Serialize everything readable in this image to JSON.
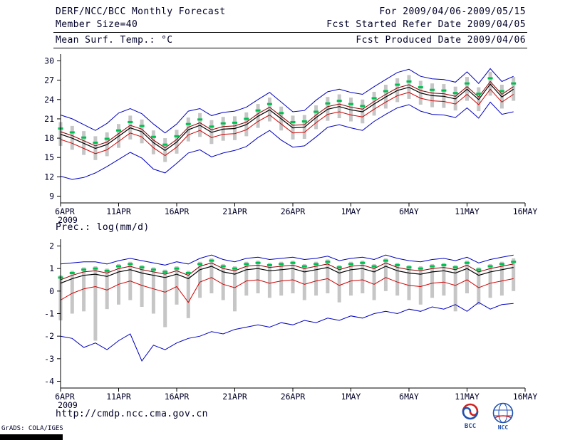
{
  "header": {
    "title": "DERF/NCC/BCC Monthly Forecast",
    "for_range": "For 2009/04/06-2009/05/15",
    "member_size": "Member Size=40",
    "refer_date": "Fcst Started Refer Date 2009/04/05",
    "produced_date": "Fcst Produced Date 2009/04/06"
  },
  "panels": {
    "temp_label": "Mean Surf. Temp.: °C",
    "prec_label": "Prec.: log(mm/d)"
  },
  "footer": {
    "url": "http://cmdp.ncc.cma.gov.cn",
    "grads_credit": "GrADS: COLA/IGES",
    "logos": {
      "bcc": "BCC",
      "ncc": "NCC"
    }
  },
  "colors": {
    "text": "#000028",
    "axis": "#000000",
    "extreme_line": "#0000c0",
    "upper_quartile_line": "#8a0000",
    "mean_line": "#000000",
    "lower_quartile_line": "#d00000",
    "spread_bar": "#c6c6c6",
    "median_marker": "#00c050"
  },
  "chart_data": [
    {
      "type": "line",
      "title": "Mean Surf. Temp.: °C",
      "xlabel": "",
      "ylabel": "°C",
      "ylim": [
        9,
        30
      ],
      "yticks": [
        9,
        12,
        15,
        18,
        21,
        24,
        27,
        30
      ],
      "x_domain": 40,
      "x_tick_positions": [
        0,
        5,
        10,
        15,
        20,
        25,
        30,
        35,
        40
      ],
      "x_tick_labels": [
        "6APR",
        "11APR",
        "16APR",
        "21APR",
        "26APR",
        "1MAY",
        "6MAY",
        "11MAY",
        "16MAY"
      ],
      "x_sub_label": "2009",
      "grid": false,
      "legend": "none",
      "series": [
        {
          "name": "ensemble-max",
          "color": "#0000c0",
          "width": 1,
          "values": [
            21.6,
            21.0,
            20.1,
            19.2,
            20.3,
            21.9,
            22.6,
            21.8,
            20.2,
            18.8,
            20.2,
            22.2,
            22.6,
            21.5,
            22.0,
            22.2,
            22.8,
            24.0,
            25.1,
            23.6,
            22.1,
            22.3,
            23.9,
            25.2,
            25.6,
            25.1,
            24.8,
            26.0,
            27.1,
            28.2,
            28.7,
            27.6,
            27.2,
            27.1,
            26.7,
            28.3,
            26.5,
            28.8,
            26.8,
            27.6
          ]
        },
        {
          "name": "upper-quartile",
          "color": "#8a0000",
          "width": 1,
          "values": [
            19.0,
            18.4,
            17.6,
            16.8,
            17.4,
            18.7,
            20.0,
            19.4,
            17.7,
            16.5,
            17.8,
            19.7,
            20.4,
            19.3,
            19.8,
            19.9,
            20.5,
            21.8,
            22.8,
            21.4,
            20.0,
            20.1,
            21.6,
            22.9,
            23.3,
            22.8,
            22.5,
            23.7,
            24.8,
            25.8,
            26.3,
            25.4,
            25.0,
            24.9,
            24.5,
            26.0,
            24.4,
            26.8,
            24.8,
            26.0
          ]
        },
        {
          "name": "ensemble-mean",
          "color": "#000000",
          "width": 1.2,
          "values": [
            18.6,
            18.0,
            17.2,
            16.4,
            17.0,
            18.3,
            19.6,
            19.0,
            17.3,
            16.1,
            17.4,
            19.3,
            20.0,
            18.9,
            19.4,
            19.5,
            20.1,
            21.4,
            22.4,
            21.0,
            19.6,
            19.7,
            21.2,
            22.5,
            22.9,
            22.4,
            22.1,
            23.3,
            24.4,
            25.4,
            25.9,
            25.0,
            24.6,
            24.5,
            24.1,
            25.6,
            24.0,
            26.4,
            24.4,
            25.6
          ]
        },
        {
          "name": "lower-quartile",
          "color": "#d00000",
          "width": 1,
          "values": [
            17.8,
            17.2,
            16.4,
            15.6,
            16.2,
            17.5,
            18.8,
            18.2,
            16.5,
            15.3,
            16.6,
            18.5,
            19.2,
            18.1,
            18.6,
            18.7,
            19.3,
            20.6,
            21.6,
            20.2,
            18.8,
            18.9,
            20.4,
            21.7,
            22.1,
            21.6,
            21.3,
            22.5,
            23.6,
            24.6,
            25.1,
            24.2,
            23.8,
            23.7,
            23.3,
            24.8,
            23.2,
            25.6,
            23.6,
            24.8
          ]
        },
        {
          "name": "ensemble-min",
          "color": "#0000c0",
          "width": 1,
          "values": [
            12.1,
            11.6,
            11.9,
            12.6,
            13.6,
            14.7,
            15.8,
            14.9,
            13.2,
            12.6,
            14.1,
            15.7,
            16.2,
            15.1,
            15.7,
            16.1,
            16.7,
            18.1,
            19.2,
            17.7,
            16.6,
            16.8,
            18.2,
            19.7,
            20.1,
            19.6,
            19.2,
            20.6,
            21.7,
            22.7,
            23.2,
            22.2,
            21.7,
            21.6,
            21.2,
            22.7,
            21.1,
            23.6,
            21.7,
            22.1
          ]
        }
      ],
      "bars": {
        "name": "ensemble-spread",
        "color": "#c6c6c6",
        "low": [
          16.8,
          16.2,
          15.4,
          14.6,
          15.2,
          16.5,
          17.8,
          17.2,
          15.5,
          14.3,
          15.6,
          17.5,
          18.2,
          17.1,
          17.6,
          17.7,
          18.3,
          19.6,
          20.6,
          19.2,
          17.8,
          17.9,
          19.4,
          20.7,
          21.1,
          20.6,
          20.3,
          21.5,
          22.6,
          23.6,
          24.1,
          23.2,
          22.8,
          22.7,
          22.3,
          23.8,
          22.2,
          24.6,
          22.6,
          23.8
        ],
        "high": [
          20.5,
          19.9,
          19.1,
          18.3,
          18.9,
          20.2,
          21.5,
          20.9,
          19.2,
          18.0,
          19.3,
          21.2,
          21.9,
          20.8,
          21.3,
          21.4,
          22.0,
          23.3,
          24.3,
          22.9,
          21.5,
          21.6,
          23.1,
          24.4,
          24.8,
          24.3,
          24.0,
          25.2,
          26.3,
          27.3,
          27.8,
          26.9,
          26.5,
          26.4,
          26.0,
          27.5,
          25.9,
          28.3,
          26.3,
          27.5
        ]
      },
      "markers": {
        "name": "median-dash",
        "color": "#00c050",
        "values": [
          19.5,
          18.9,
          18.1,
          17.3,
          17.9,
          19.2,
          20.5,
          19.9,
          18.2,
          17.0,
          18.3,
          20.2,
          20.9,
          19.8,
          20.3,
          20.4,
          21.0,
          22.3,
          23.3,
          21.9,
          20.5,
          20.6,
          22.1,
          23.4,
          23.8,
          23.3,
          23.0,
          24.2,
          25.3,
          26.3,
          26.8,
          25.9,
          25.5,
          25.4,
          25.0,
          26.5,
          24.9,
          27.3,
          25.3,
          26.5
        ]
      }
    },
    {
      "type": "line",
      "title": "Prec.: log(mm/d)",
      "xlabel": "",
      "ylabel": "log(mm/d)",
      "ylim": [
        -4,
        2
      ],
      "yticks": [
        -4,
        -3,
        -2,
        -1,
        0,
        1,
        2
      ],
      "x_domain": 40,
      "x_tick_positions": [
        0,
        5,
        10,
        15,
        20,
        25,
        30,
        35,
        40
      ],
      "x_tick_labels": [
        "6APR",
        "11APR",
        "16APR",
        "21APR",
        "26APR",
        "1MAY",
        "6MAY",
        "11MAY",
        "16MAY"
      ],
      "x_sub_label": "2009",
      "grid": false,
      "legend": "none",
      "series": [
        {
          "name": "ensemble-max",
          "color": "#0000c0",
          "width": 1,
          "values": [
            1.2,
            1.25,
            1.3,
            1.3,
            1.2,
            1.35,
            1.45,
            1.35,
            1.25,
            1.15,
            1.3,
            1.2,
            1.45,
            1.6,
            1.4,
            1.3,
            1.45,
            1.5,
            1.4,
            1.45,
            1.5,
            1.4,
            1.45,
            1.55,
            1.35,
            1.45,
            1.5,
            1.4,
            1.6,
            1.45,
            1.35,
            1.3,
            1.4,
            1.45,
            1.35,
            1.5,
            1.25,
            1.4,
            1.5,
            1.6
          ]
        },
        {
          "name": "upper-quartile",
          "color": "#8a0000",
          "width": 1,
          "values": [
            0.5,
            0.7,
            0.85,
            0.9,
            0.8,
            1.0,
            1.1,
            0.95,
            0.85,
            0.75,
            0.9,
            0.7,
            1.1,
            1.25,
            1.0,
            0.9,
            1.1,
            1.15,
            1.05,
            1.1,
            1.15,
            1.0,
            1.1,
            1.2,
            0.95,
            1.1,
            1.15,
            1.0,
            1.25,
            1.05,
            0.95,
            0.9,
            1.0,
            1.05,
            0.95,
            1.15,
            0.85,
            1.0,
            1.1,
            1.2
          ]
        },
        {
          "name": "ensemble-mean",
          "color": "#000000",
          "width": 1.2,
          "values": [
            0.35,
            0.55,
            0.7,
            0.75,
            0.65,
            0.85,
            0.95,
            0.8,
            0.7,
            0.6,
            0.75,
            0.55,
            0.95,
            1.1,
            0.85,
            0.75,
            0.95,
            1.0,
            0.9,
            0.95,
            1.0,
            0.85,
            0.95,
            1.05,
            0.8,
            0.95,
            1.0,
            0.85,
            1.1,
            0.9,
            0.8,
            0.75,
            0.85,
            0.9,
            0.8,
            1.0,
            0.7,
            0.85,
            0.95,
            1.05
          ]
        },
        {
          "name": "lower-quartile",
          "color": "#d00000",
          "width": 1,
          "values": [
            -0.4,
            -0.1,
            0.1,
            0.2,
            0.05,
            0.3,
            0.45,
            0.25,
            0.1,
            -0.05,
            0.2,
            -0.5,
            0.4,
            0.6,
            0.3,
            0.15,
            0.45,
            0.5,
            0.35,
            0.45,
            0.5,
            0.3,
            0.45,
            0.55,
            0.25,
            0.45,
            0.5,
            0.3,
            0.6,
            0.4,
            0.25,
            0.2,
            0.35,
            0.4,
            0.25,
            0.5,
            0.15,
            0.35,
            0.45,
            0.55
          ]
        },
        {
          "name": "ensemble-min",
          "color": "#0000c0",
          "width": 1,
          "values": [
            -2.0,
            -2.1,
            -2.5,
            -2.3,
            -2.6,
            -2.2,
            -1.9,
            -3.1,
            -2.4,
            -2.6,
            -2.3,
            -2.1,
            -2.0,
            -1.8,
            -1.9,
            -1.7,
            -1.6,
            -1.5,
            -1.6,
            -1.4,
            -1.5,
            -1.3,
            -1.4,
            -1.2,
            -1.3,
            -1.1,
            -1.2,
            -1.0,
            -0.9,
            -1.0,
            -0.8,
            -0.9,
            -0.7,
            -0.8,
            -0.6,
            -0.9,
            -0.5,
            -0.8,
            -0.6,
            -0.55
          ]
        }
      ],
      "bars": {
        "name": "ensemble-spread",
        "color": "#c6c6c6",
        "low": [
          -1.3,
          -1.0,
          -0.9,
          -2.2,
          -0.8,
          -0.6,
          -0.4,
          -0.7,
          -1.0,
          -1.6,
          -0.6,
          -1.2,
          -0.3,
          -0.1,
          -0.4,
          -0.9,
          -0.2,
          -0.1,
          -0.3,
          -0.2,
          -0.1,
          -0.4,
          -0.2,
          -0.1,
          -0.5,
          -0.2,
          -0.1,
          -0.4,
          0.0,
          -0.2,
          -0.4,
          -0.6,
          -0.3,
          -0.2,
          -0.9,
          -0.1,
          -0.6,
          -0.3,
          -0.2,
          0.0
        ],
        "high": [
          0.7,
          0.9,
          1.05,
          1.1,
          1.0,
          1.2,
          1.3,
          1.15,
          1.05,
          0.95,
          1.1,
          0.9,
          1.3,
          1.45,
          1.2,
          1.1,
          1.3,
          1.35,
          1.25,
          1.3,
          1.35,
          1.2,
          1.3,
          1.4,
          1.15,
          1.3,
          1.35,
          1.2,
          1.45,
          1.25,
          1.15,
          1.1,
          1.2,
          1.25,
          1.15,
          1.35,
          1.05,
          1.2,
          1.3,
          1.45
        ]
      },
      "markers": {
        "name": "median-dash",
        "color": "#00c050",
        "values": [
          0.6,
          0.8,
          0.95,
          1.0,
          0.9,
          1.1,
          1.2,
          1.05,
          0.95,
          0.85,
          1.0,
          0.8,
          1.2,
          1.35,
          1.1,
          1.0,
          1.2,
          1.25,
          1.15,
          1.2,
          1.25,
          1.1,
          1.2,
          1.3,
          1.05,
          1.2,
          1.25,
          1.1,
          1.35,
          1.15,
          1.05,
          1.0,
          1.1,
          1.15,
          1.05,
          1.25,
          0.95,
          1.1,
          1.2,
          1.3
        ]
      }
    }
  ]
}
